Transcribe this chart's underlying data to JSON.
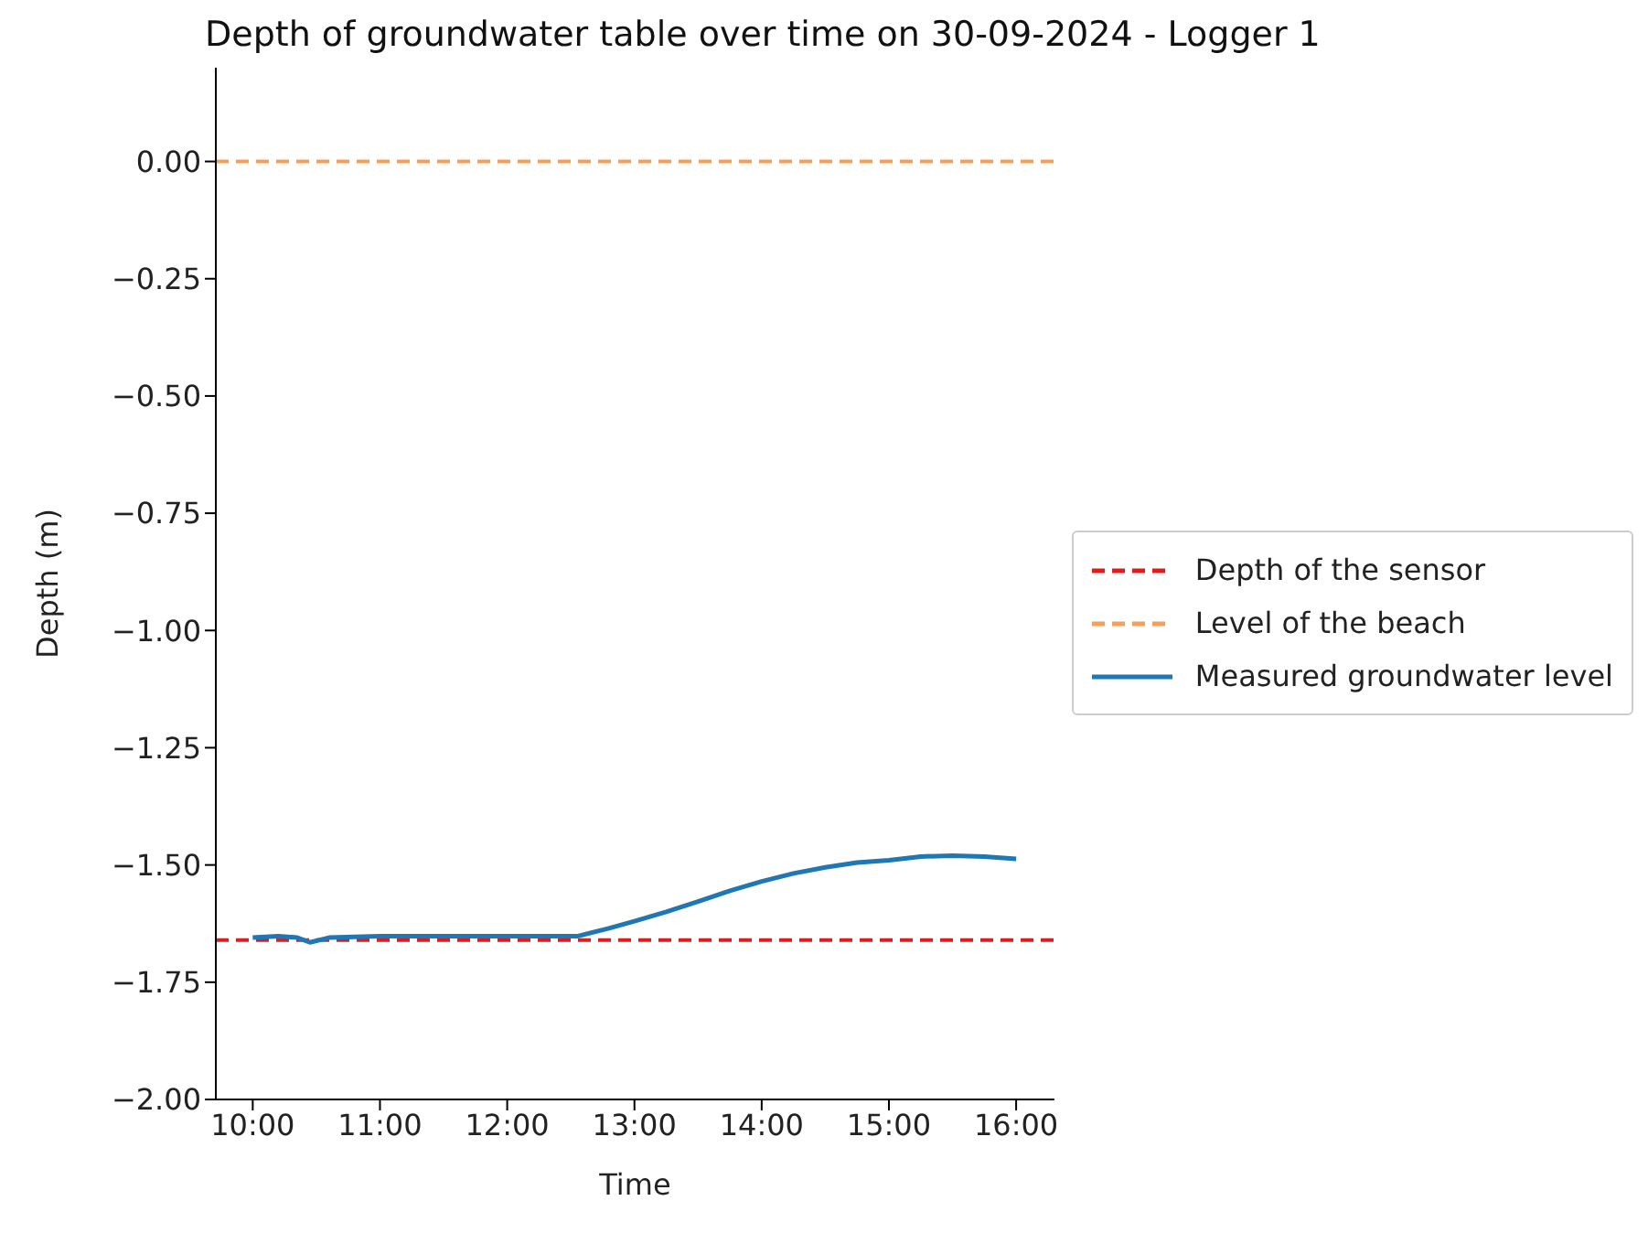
{
  "chart_data": {
    "type": "line",
    "title": "Depth of groundwater table over time on 30-09-2024 - Logger 1",
    "xlabel": "Time",
    "ylabel": "Depth (m)",
    "xlim": [
      9.71,
      16.3
    ],
    "xticks": [
      {
        "value": 10,
        "label": "10:00"
      },
      {
        "value": 11,
        "label": "11:00"
      },
      {
        "value": 12,
        "label": "12:00"
      },
      {
        "value": 13,
        "label": "13:00"
      },
      {
        "value": 14,
        "label": "14:00"
      },
      {
        "value": 15,
        "label": "15:00"
      },
      {
        "value": 16,
        "label": "16:00"
      }
    ],
    "ylim": [
      -2.0,
      0.2
    ],
    "yticks": [
      {
        "value": 0,
        "label": "0.00"
      },
      {
        "value": -0.25,
        "label": "−0.25"
      },
      {
        "value": -0.5,
        "label": "−0.50"
      },
      {
        "value": -0.75,
        "label": "−0.75"
      },
      {
        "value": -1,
        "label": "−1.00"
      },
      {
        "value": -1.25,
        "label": "−1.25"
      },
      {
        "value": -1.5,
        "label": "−1.50"
      },
      {
        "value": -1.75,
        "label": "−1.75"
      },
      {
        "value": -2,
        "label": "−2.00"
      }
    ],
    "ref_lines": [
      {
        "axis": "y",
        "value": -1.66,
        "label": "Depth of the sensor",
        "color": "#e31a1c",
        "line_style": "dashed"
      },
      {
        "axis": "y",
        "value": 0,
        "label": "Level of the beach",
        "color": "#f5a05a",
        "line_style": "dashed"
      }
    ],
    "series": [
      {
        "name": "Measured groundwater level",
        "color": "#1f77b4",
        "x": [
          10,
          10.2,
          10.35,
          10.45,
          10.6,
          11,
          11.5,
          12,
          12.55,
          12.8,
          13,
          13.25,
          13.5,
          13.75,
          14,
          14.25,
          14.5,
          14.75,
          15,
          15.25,
          15.5,
          15.75,
          16
        ],
        "values": [
          -1.655,
          -1.652,
          -1.655,
          -1.665,
          -1.655,
          -1.652,
          -1.652,
          -1.652,
          -1.652,
          -1.635,
          -1.62,
          -1.6,
          -1.578,
          -1.555,
          -1.535,
          -1.518,
          -1.505,
          -1.495,
          -1.49,
          -1.482,
          -1.48,
          -1.482,
          -1.487
        ]
      }
    ],
    "legend": "right",
    "grid": false
  }
}
